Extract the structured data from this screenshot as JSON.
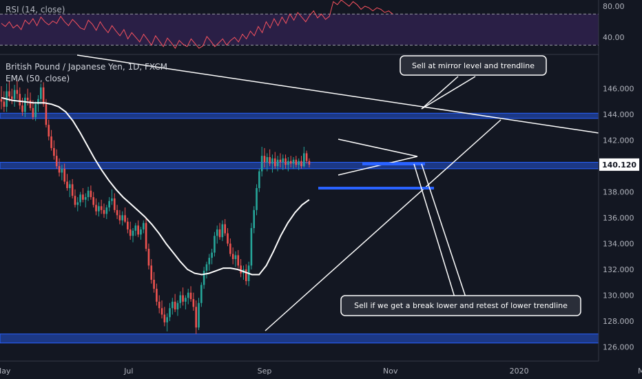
{
  "chart_data": {
    "type": "candlestick",
    "title": "British Pound / Japanese Yen, 1D, FXCM",
    "indicator_label": "EMA (50, close)",
    "rsi_label": "RSI (14, close)",
    "rsi": {
      "ticks": [
        "80.00",
        "40.00"
      ],
      "tick_values": [
        80,
        40
      ],
      "band_upper": 70,
      "band_lower": 30,
      "range": [
        18,
        88
      ],
      "values": [
        58,
        54,
        60,
        52,
        56,
        50,
        62,
        57,
        64,
        55,
        66,
        60,
        56,
        61,
        58,
        67,
        60,
        55,
        63,
        58,
        52,
        50,
        62,
        57,
        49,
        60,
        52,
        46,
        55,
        48,
        42,
        50,
        38,
        46,
        40,
        34,
        44,
        37,
        30,
        42,
        35,
        28,
        39,
        33,
        26,
        36,
        31,
        28,
        38,
        32,
        26,
        29,
        41,
        35,
        28,
        33,
        38,
        30,
        36,
        40,
        34,
        44,
        38,
        48,
        42,
        54,
        46,
        60,
        52,
        64,
        55,
        66,
        58,
        70,
        62,
        72,
        66,
        60,
        68,
        74,
        65,
        70,
        63,
        67,
        86,
        82,
        88,
        84,
        80,
        86,
        82,
        76,
        80,
        78,
        74,
        78,
        76,
        72,
        74,
        70
      ]
    },
    "price": {
      "ylim": [
        124.9,
        148.6
      ],
      "ticks": [
        "146.000",
        "144.000",
        "142.000",
        "140.000",
        "138.000",
        "136.000",
        "134.000",
        "132.000",
        "130.000",
        "128.000",
        "126.000"
      ],
      "tick_values": [
        146,
        144,
        142,
        140,
        138,
        136,
        134,
        132,
        130,
        128,
        126
      ],
      "current_price": "140.120",
      "current_value": 140.12
    },
    "x_ticks": [
      "May",
      "Jul",
      "Sep",
      "Nov",
      "2020",
      "Mar"
    ],
    "x_tick_positions": [
      0.5,
      44.5,
      92,
      136,
      181,
      225
    ],
    "ohlc": [
      [
        145.2,
        146.2,
        144.4,
        145.0
      ],
      [
        145.0,
        145.8,
        144.2,
        144.6
      ],
      [
        144.6,
        146.4,
        144.2,
        145.8
      ],
      [
        145.8,
        146.6,
        145.0,
        145.4
      ],
      [
        145.4,
        146.0,
        144.8,
        145.2
      ],
      [
        145.2,
        146.3,
        144.6,
        145.9
      ],
      [
        145.9,
        146.6,
        145.2,
        145.6
      ],
      [
        145.6,
        146.1,
        144.4,
        144.7
      ],
      [
        144.7,
        145.3,
        143.9,
        144.2
      ],
      [
        144.2,
        145.6,
        143.8,
        145.3
      ],
      [
        145.3,
        146.0,
        144.7,
        145.1
      ],
      [
        145.1,
        145.7,
        144.3,
        144.5
      ],
      [
        144.5,
        145.1,
        143.6,
        143.8
      ],
      [
        143.8,
        145.0,
        143.5,
        144.8
      ],
      [
        144.8,
        145.5,
        144.2,
        145.2
      ],
      [
        145.2,
        146.4,
        144.8,
        146.1
      ],
      [
        146.1,
        146.5,
        144.6,
        144.8
      ],
      [
        144.8,
        145.2,
        143.0,
        143.2
      ],
      [
        143.2,
        143.6,
        142.0,
        142.3
      ],
      [
        142.3,
        142.8,
        141.2,
        141.4
      ],
      [
        141.4,
        142.0,
        140.5,
        140.8
      ],
      [
        140.8,
        141.3,
        139.8,
        140.0
      ],
      [
        140.0,
        140.6,
        139.2,
        139.5
      ],
      [
        139.5,
        140.1,
        138.9,
        139.8
      ],
      [
        139.8,
        140.2,
        138.6,
        138.8
      ],
      [
        138.8,
        139.4,
        138.1,
        138.3
      ],
      [
        138.3,
        138.9,
        137.6,
        138.6
      ],
      [
        138.6,
        139.0,
        137.5,
        137.7
      ],
      [
        137.7,
        138.2,
        136.8,
        137.0
      ],
      [
        137.0,
        137.6,
        136.5,
        137.2
      ],
      [
        137.2,
        138.0,
        136.9,
        137.8
      ],
      [
        137.8,
        138.3,
        137.2,
        137.4
      ],
      [
        137.4,
        137.9,
        136.8,
        137.6
      ],
      [
        137.6,
        138.4,
        137.3,
        138.1
      ],
      [
        138.1,
        138.5,
        137.4,
        137.6
      ],
      [
        137.6,
        138.0,
        136.8,
        137.0
      ],
      [
        137.0,
        137.5,
        136.2,
        136.5
      ],
      [
        136.5,
        137.2,
        136.1,
        136.9
      ],
      [
        136.9,
        137.4,
        136.3,
        136.6
      ],
      [
        136.6,
        137.1,
        136.0,
        136.3
      ],
      [
        136.3,
        137.0,
        135.9,
        136.8
      ],
      [
        136.8,
        137.6,
        136.5,
        137.3
      ],
      [
        137.3,
        138.2,
        137.0,
        137.5
      ],
      [
        137.5,
        137.9,
        136.4,
        136.6
      ],
      [
        136.6,
        137.0,
        135.9,
        136.2
      ],
      [
        136.2,
        136.6,
        135.5,
        135.8
      ],
      [
        135.8,
        136.5,
        135.4,
        136.2
      ],
      [
        136.2,
        136.8,
        135.6,
        135.7
      ],
      [
        135.7,
        136.0,
        134.8,
        135.1
      ],
      [
        135.1,
        135.7,
        134.3,
        134.6
      ],
      [
        134.6,
        135.2,
        134.1,
        135.0
      ],
      [
        135.0,
        135.6,
        134.6,
        135.4
      ],
      [
        135.4,
        135.8,
        134.5,
        134.7
      ],
      [
        134.7,
        135.3,
        134.3,
        135.1
      ],
      [
        135.1,
        135.8,
        134.8,
        135.6
      ],
      [
        135.6,
        135.9,
        133.4,
        133.6
      ],
      [
        133.6,
        134.0,
        132.0,
        132.3
      ],
      [
        132.3,
        132.8,
        130.9,
        131.2
      ],
      [
        131.2,
        131.8,
        130.2,
        130.5
      ],
      [
        130.5,
        130.9,
        129.2,
        129.5
      ],
      [
        129.5,
        130.0,
        128.6,
        129.0
      ],
      [
        129.0,
        129.6,
        128.2,
        128.5
      ],
      [
        128.5,
        129.1,
        127.6,
        127.9
      ],
      [
        127.9,
        128.6,
        127.2,
        128.3
      ],
      [
        128.3,
        129.4,
        128.0,
        129.0
      ],
      [
        129.0,
        129.8,
        128.5,
        129.5
      ],
      [
        129.5,
        130.1,
        128.7,
        128.9
      ],
      [
        128.9,
        129.6,
        128.4,
        129.4
      ],
      [
        129.4,
        130.3,
        129.0,
        130.0
      ],
      [
        130.0,
        130.6,
        129.2,
        129.5
      ],
      [
        129.5,
        130.0,
        128.9,
        129.8
      ],
      [
        129.8,
        130.5,
        129.3,
        130.2
      ],
      [
        130.2,
        130.7,
        129.5,
        129.7
      ],
      [
        129.7,
        130.2,
        128.8,
        129.1
      ],
      [
        129.1,
        129.6,
        127.0,
        127.5
      ],
      [
        127.5,
        129.8,
        127.3,
        129.4
      ],
      [
        129.4,
        131.0,
        129.1,
        130.8
      ],
      [
        130.8,
        132.2,
        130.5,
        131.9
      ],
      [
        131.9,
        132.6,
        131.3,
        132.4
      ],
      [
        132.4,
        133.2,
        131.9,
        132.9
      ],
      [
        132.9,
        133.6,
        132.4,
        133.3
      ],
      [
        133.3,
        134.9,
        133.0,
        134.6
      ],
      [
        134.6,
        135.4,
        134.0,
        135.1
      ],
      [
        135.1,
        135.6,
        134.3,
        134.5
      ],
      [
        134.5,
        135.8,
        134.2,
        135.5
      ],
      [
        135.5,
        135.9,
        134.6,
        134.8
      ],
      [
        134.8,
        135.2,
        133.8,
        134.0
      ],
      [
        134.0,
        134.4,
        133.0,
        133.2
      ],
      [
        133.2,
        133.7,
        132.4,
        132.8
      ],
      [
        132.8,
        133.4,
        132.2,
        133.1
      ],
      [
        133.1,
        133.5,
        132.1,
        132.3
      ],
      [
        132.3,
        132.8,
        131.4,
        131.7
      ],
      [
        131.7,
        132.3,
        131.2,
        132.0
      ],
      [
        132.0,
        132.4,
        130.8,
        131.1
      ],
      [
        131.1,
        132.6,
        130.7,
        132.3
      ],
      [
        132.3,
        135.6,
        132.0,
        135.2
      ],
      [
        135.2,
        136.9,
        134.8,
        136.6
      ],
      [
        136.6,
        138.6,
        136.2,
        138.3
      ],
      [
        138.3,
        139.8,
        138.0,
        139.6
      ],
      [
        139.6,
        141.5,
        139.2,
        140.8
      ],
      [
        140.8,
        141.4,
        139.9,
        140.3
      ],
      [
        140.3,
        141.0,
        139.6,
        140.7
      ],
      [
        140.7,
        141.3,
        140.0,
        140.2
      ],
      [
        140.2,
        140.9,
        139.5,
        140.6
      ],
      [
        140.6,
        141.1,
        139.8,
        140.0
      ],
      [
        140.0,
        140.8,
        139.6,
        140.5
      ],
      [
        140.5,
        141.0,
        139.9,
        140.3
      ],
      [
        140.3,
        140.9,
        139.7,
        140.6
      ],
      [
        140.6,
        140.9,
        139.8,
        140.1
      ],
      [
        140.1,
        140.7,
        139.6,
        140.4
      ],
      [
        140.4,
        140.8,
        139.9,
        140.2
      ],
      [
        140.2,
        140.7,
        139.8,
        140.5
      ],
      [
        140.5,
        140.8,
        139.9,
        140.1
      ],
      [
        140.1,
        140.6,
        139.7,
        140.4
      ],
      [
        140.4,
        140.8,
        139.8,
        140.0
      ],
      [
        140.0,
        141.5,
        139.9,
        141.0
      ],
      [
        141.0,
        141.2,
        140.2,
        140.4
      ],
      [
        140.4,
        140.6,
        139.9,
        140.12
      ]
    ],
    "ema": [
      145.3,
      145.1,
      145.0,
      144.9,
      144.9,
      144.8,
      144.6,
      144.2,
      143.5,
      142.6,
      141.6,
      140.6,
      139.7,
      138.9,
      138.2,
      137.6,
      137.1,
      136.6,
      136.1,
      135.5,
      134.8,
      134.0,
      133.3,
      132.6,
      132.0,
      131.7,
      131.6,
      131.7,
      131.9,
      132.1,
      132.1,
      132.0,
      131.8,
      131.6,
      131.6,
      132.3,
      133.4,
      134.6,
      135.6,
      136.4,
      137.0,
      137.4
    ],
    "ema_x": [
      0,
      3,
      6,
      9,
      12,
      14,
      16,
      18,
      20,
      22,
      24,
      26,
      28,
      30,
      32,
      34,
      36,
      38,
      40,
      42,
      44,
      46,
      48,
      50,
      52,
      54,
      56,
      58,
      60,
      62,
      64,
      66,
      68,
      70,
      72,
      74,
      76,
      78,
      80,
      82,
      84,
      86
    ],
    "annotations": {
      "callout_top": "Sell at mirror level and trendline",
      "callout_bottom": "Sell if we get a break lower and retest of lower trendline"
    },
    "zones": [
      {
        "from": 143.7,
        "to": 144.1
      },
      {
        "from": 139.8,
        "to": 140.3
      },
      {
        "from": 126.3,
        "to": 127.0
      }
    ],
    "colors": {
      "up": "#26a69a",
      "down": "#ef5350",
      "zone": "#2962ff",
      "rsi_line": "#f7525f",
      "rsi_band": "#7e57c2",
      "ema": "#ffffff"
    }
  }
}
